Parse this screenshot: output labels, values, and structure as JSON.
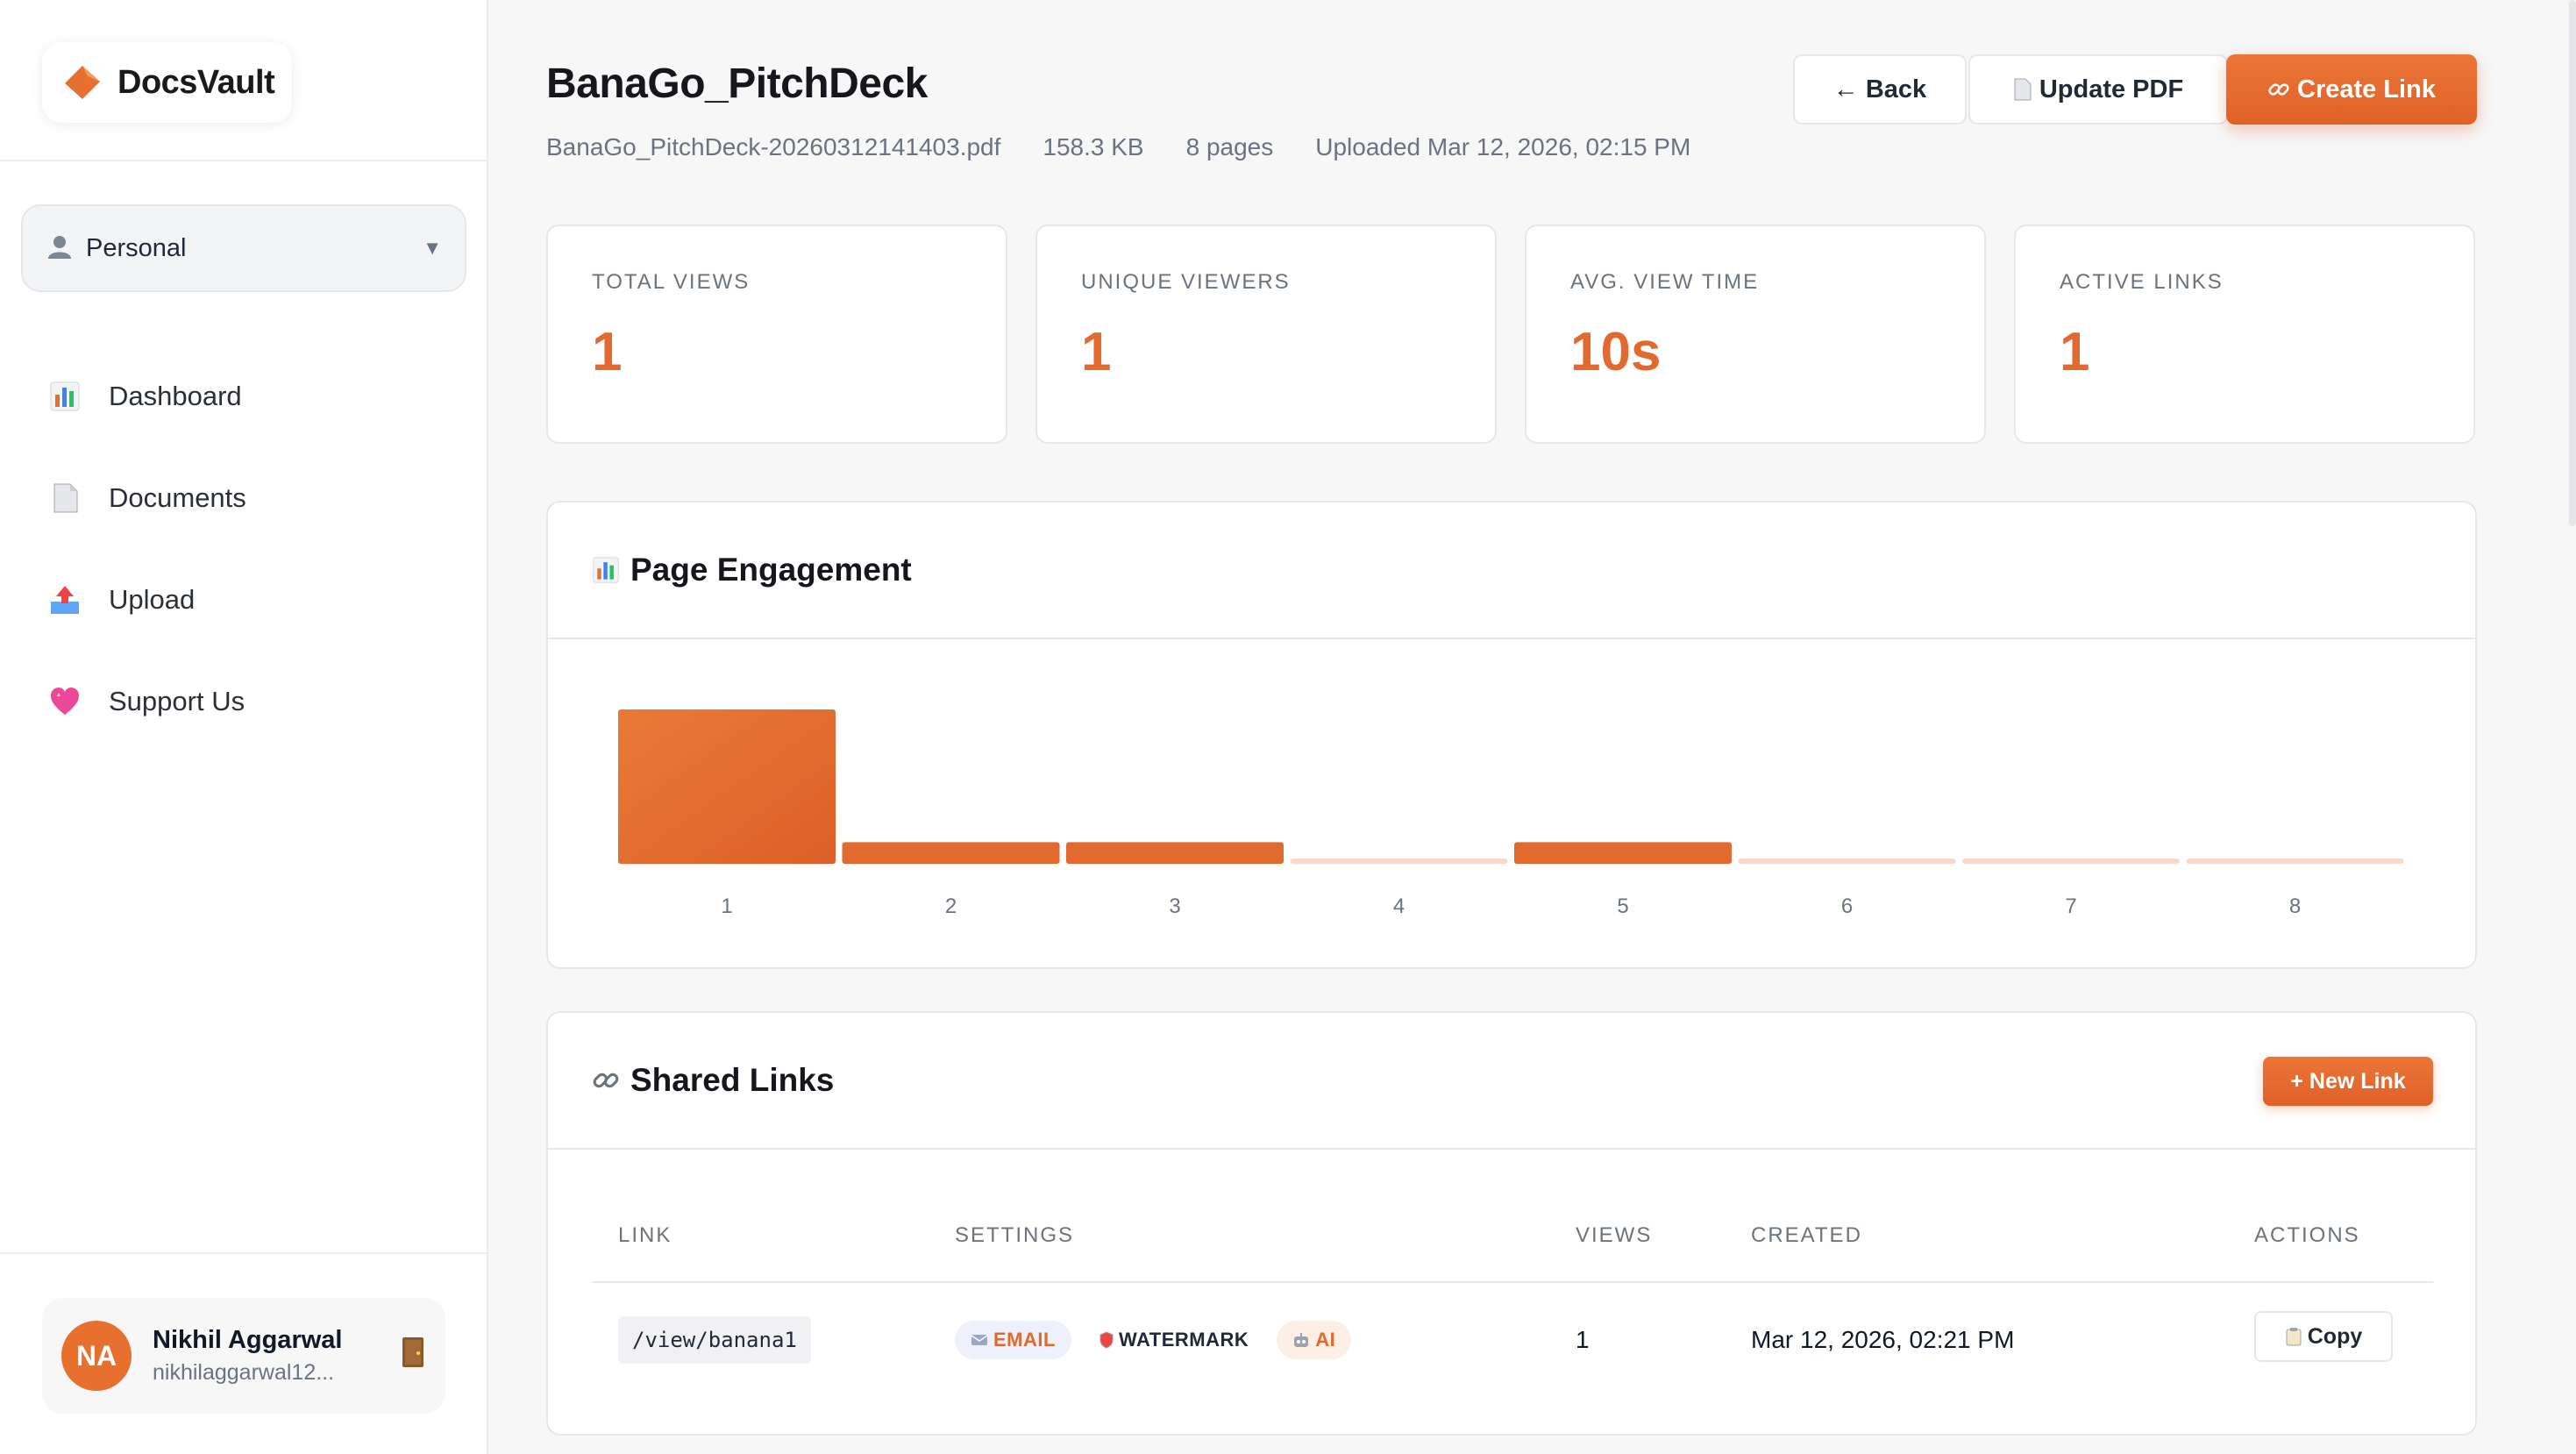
{
  "brand": {
    "name": "DocsVault"
  },
  "workspace": {
    "label": "Personal",
    "icon": "person-icon"
  },
  "nav": [
    {
      "label": "Dashboard",
      "icon": "bar-chart-icon"
    },
    {
      "label": "Documents",
      "icon": "document-icon"
    },
    {
      "label": "Upload",
      "icon": "inbox-tray-icon"
    },
    {
      "label": "Support Us",
      "icon": "heart-icon"
    }
  ],
  "user": {
    "initials": "NA",
    "name": "Nikhil Aggarwal",
    "email": "nikhilaggarwal12..."
  },
  "doc": {
    "title": "BanaGo_PitchDeck",
    "filename": "BanaGo_PitchDeck-20260312141403.pdf",
    "size": "158.3 KB",
    "pages": "8 pages",
    "uploaded": "Uploaded Mar 12, 2026, 02:15 PM"
  },
  "toolbar": {
    "back": "← Back",
    "update": "Update PDF",
    "create": "Create Link"
  },
  "stats": [
    {
      "label": "TOTAL VIEWS",
      "value": "1"
    },
    {
      "label": "UNIQUE VIEWERS",
      "value": "1"
    },
    {
      "label": "AVG. VIEW TIME",
      "value": "10s"
    },
    {
      "label": "ACTIVE LINKS",
      "value": "1"
    }
  ],
  "engagement": {
    "title": "Page Engagement"
  },
  "chart_data": {
    "type": "bar",
    "categories": [
      "1",
      "2",
      "3",
      "4",
      "5",
      "6",
      "7",
      "8"
    ],
    "values": [
      100,
      14,
      14,
      2,
      14,
      2,
      2,
      2
    ],
    "colors": {
      "bar": "#e26a2f",
      "empty": "#f8d9c6"
    }
  },
  "links": {
    "title": "Shared Links",
    "new_button": "+ New Link",
    "columns": [
      "LINK",
      "SETTINGS",
      "VIEWS",
      "CREATED",
      "ACTIONS"
    ],
    "rows": [
      {
        "link": "/view/banana1",
        "tags": [
          "EMAIL",
          "WATERMARK",
          "AI"
        ],
        "views": "1",
        "created": "Mar 12, 2026, 02:21 PM",
        "action": "Copy"
      }
    ]
  }
}
